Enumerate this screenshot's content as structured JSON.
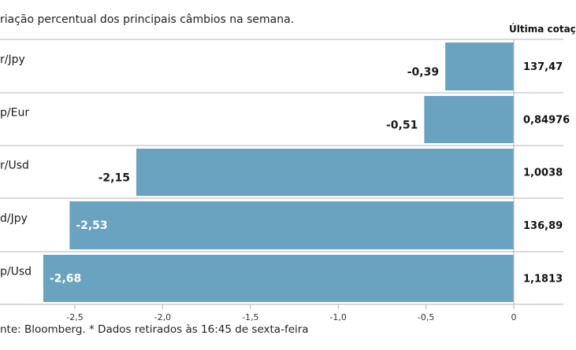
{
  "subtitle": "riação percentual dos principais câmbios na semana.",
  "column_header": "Última cotaç",
  "source": "nte: Bloomberg.  * Dados retirados às 16:45 de sexta-feira",
  "colors": {
    "bar": "#6aa3bf",
    "grid": "#b5b5b5",
    "value_text_dark": "#1a1a1a",
    "value_text_light": "#ffffff"
  },
  "chart_data": {
    "type": "bar",
    "orientation": "horizontal",
    "categories": [
      "r/Jpy",
      "p/Eur",
      "r/Usd",
      "d/Jpy",
      "p/Usd"
    ],
    "values": [
      -0.39,
      -0.51,
      -2.15,
      -2.53,
      -2.68
    ],
    "value_labels": [
      "-0,39",
      "-0,51",
      "-2,15",
      "-2,53",
      "-2,68"
    ],
    "last_quote": [
      "137,47",
      "0,84976",
      "1,0038",
      "136,89",
      "1,1813"
    ],
    "xlim": [
      -2.8,
      0
    ],
    "xticks": [
      -2.5,
      -2.0,
      -1.5,
      -1.0,
      -0.5,
      0
    ],
    "xtick_labels": [
      "-2,5",
      "-2,0",
      "-1,5",
      "-1,0",
      "-0,5",
      "0"
    ]
  }
}
